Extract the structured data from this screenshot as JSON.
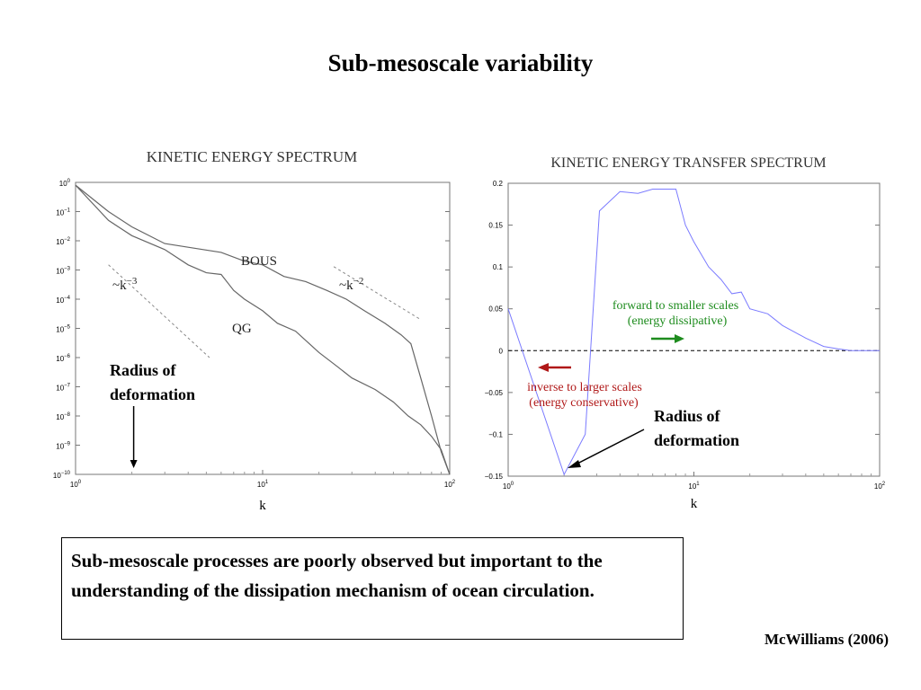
{
  "slide_title": "Sub-mesoscale variability",
  "caption": "Sub-mesoscale processes are poorly observed but important to the understanding of the dissipation mechanism of ocean circulation.",
  "citation": "McWilliams (2006)",
  "chart_data": [
    {
      "type": "line",
      "title": "KINETIC ENERGY SPECTRUM",
      "xlabel": "k",
      "ylabel": "",
      "x_scale": "log",
      "y_scale": "log",
      "xlim": [
        1,
        100
      ],
      "ylim": [
        1e-10,
        1
      ],
      "x_ticks": [
        {
          "v": 1,
          "base": "10",
          "exp": "0"
        },
        {
          "v": 10,
          "base": "10",
          "exp": "1"
        },
        {
          "v": 100,
          "base": "10",
          "exp": "2"
        }
      ],
      "y_ticks": [
        {
          "v": 1,
          "base": "10",
          "exp": "0"
        },
        {
          "v": 0.1,
          "base": "10",
          "exp": "−1"
        },
        {
          "v": 0.01,
          "base": "10",
          "exp": "−2"
        },
        {
          "v": 0.001,
          "base": "10",
          "exp": "−3"
        },
        {
          "v": 0.0001,
          "base": "10",
          "exp": "−4"
        },
        {
          "v": 1e-05,
          "base": "10",
          "exp": "−5"
        },
        {
          "v": 1e-06,
          "base": "10",
          "exp": "−6"
        },
        {
          "v": 1e-07,
          "base": "10",
          "exp": "−7"
        },
        {
          "v": 1e-08,
          "base": "10",
          "exp": "−8"
        },
        {
          "v": 1e-09,
          "base": "10",
          "exp": "−9"
        },
        {
          "v": 1e-10,
          "base": "10",
          "exp": "−10"
        }
      ],
      "series": [
        {
          "name": "BOUS",
          "x": [
            1,
            1.5,
            2,
            3,
            4,
            6,
            8,
            10,
            13,
            17,
            22,
            28,
            35,
            45,
            55,
            62,
            70,
            80,
            90,
            100
          ],
          "y": [
            0.8,
            0.1,
            0.03,
            0.008,
            0.006,
            0.004,
            0.002,
            0.0015,
            0.0006,
            0.0004,
            0.0002,
            0.0001,
            4e-05,
            1.5e-05,
            6e-06,
            3e-06,
            2e-07,
            1e-08,
            6e-10,
            1e-10
          ]
        },
        {
          "name": "QG",
          "x": [
            1,
            1.5,
            2,
            3,
            4,
            5,
            6,
            7,
            8,
            10,
            12,
            15,
            20,
            25,
            30,
            40,
            50,
            60,
            70,
            80,
            90,
            100
          ],
          "y": [
            0.8,
            0.05,
            0.015,
            0.005,
            0.0015,
            0.0008,
            0.0007,
            0.0002,
            0.0001,
            4e-05,
            1.5e-05,
            8e-06,
            1.5e-06,
            5e-07,
            2e-07,
            8e-08,
            3e-08,
            1e-08,
            5e-09,
            2e-09,
            7e-10,
            1e-10
          ]
        }
      ],
      "slope_annotations": [
        {
          "label": "~k",
          "exp": "−3",
          "x": [
            1.5,
            5.2
          ],
          "y": [
            0.0015,
            1e-06
          ]
        },
        {
          "label": "~k",
          "exp": "−2",
          "x": [
            24,
            70
          ],
          "y": [
            0.0013,
            2e-05
          ]
        }
      ],
      "annotation": {
        "text_line1": "Radius of",
        "text_line2": "deformation",
        "k": 2
      }
    },
    {
      "type": "line",
      "title": "KINETIC ENERGY TRANSFER SPECTRUM",
      "xlabel": "k",
      "ylabel": "",
      "x_scale": "log",
      "xlim": [
        1,
        100
      ],
      "ylim": [
        -0.15,
        0.2
      ],
      "x_ticks": [
        {
          "v": 1,
          "base": "10",
          "exp": "0"
        },
        {
          "v": 10,
          "base": "10",
          "exp": "1"
        },
        {
          "v": 100,
          "base": "10",
          "exp": "2"
        }
      ],
      "y_ticks": [
        {
          "v": 0.2,
          "label": "0.2"
        },
        {
          "v": 0.15,
          "label": "0.15"
        },
        {
          "v": 0.1,
          "label": "0.1"
        },
        {
          "v": 0.05,
          "label": "0.05"
        },
        {
          "v": 0,
          "label": "0"
        },
        {
          "v": -0.05,
          "label": "−0.05"
        },
        {
          "v": -0.1,
          "label": "−0.1"
        },
        {
          "v": -0.15,
          "label": "−0.15"
        }
      ],
      "series": [
        {
          "name": "",
          "color": "#7b7bff",
          "x": [
            1,
            2,
            2.6,
            3.1,
            4,
            5,
            6,
            7,
            8,
            9,
            10,
            12,
            14,
            16,
            18,
            20,
            25,
            30,
            40,
            50,
            60,
            70,
            80,
            90,
            100
          ],
          "y": [
            0.05,
            -0.148,
            -0.1,
            0.167,
            0.19,
            0.188,
            0.193,
            0.193,
            0.193,
            0.15,
            0.13,
            0.1,
            0.085,
            0.068,
            0.07,
            0.05,
            0.044,
            0.03,
            0.015,
            0.005,
            0.002,
            0.0,
            0.0,
            0.0,
            0.0
          ]
        }
      ],
      "zero_line": "dashed",
      "forward_label": {
        "line1": "forward to smaller scales",
        "line2": "(energy dissipative)",
        "color": "#1e8c1e"
      },
      "inverse_label": {
        "line1": "inverse to larger scales",
        "line2": "(energy conservative)",
        "color": "#b01818"
      },
      "annotation": {
        "text_line1": "Radius of",
        "text_line2": "deformation",
        "k": 2
      }
    }
  ]
}
